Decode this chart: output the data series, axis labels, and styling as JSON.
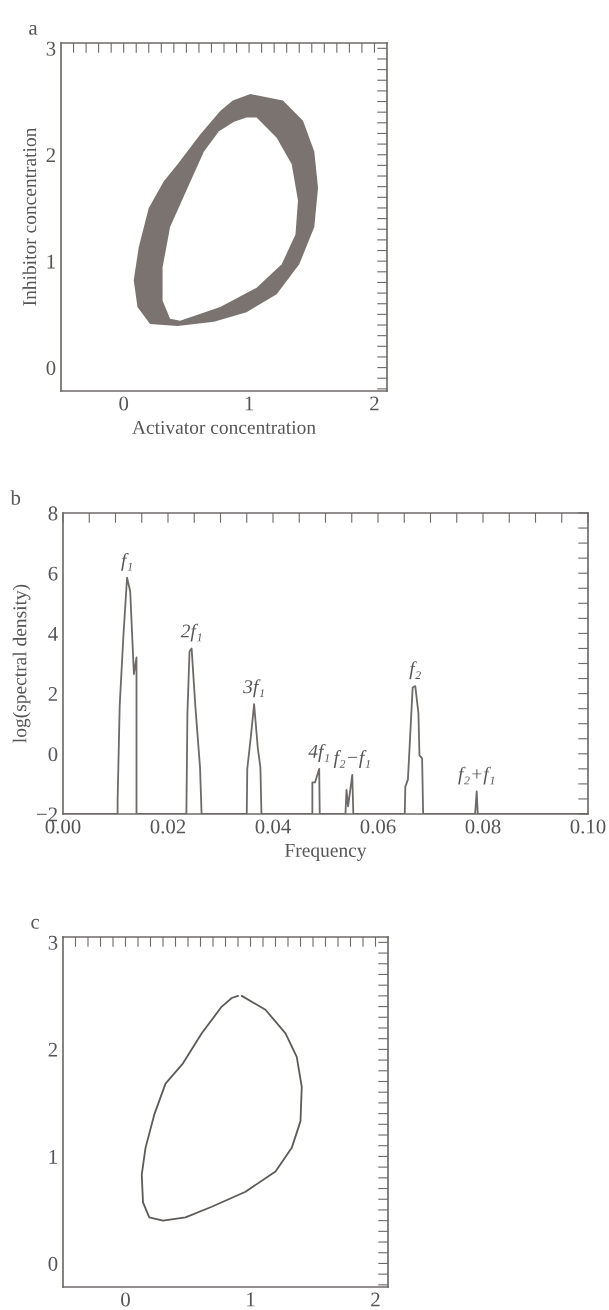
{
  "chart_data": [
    {
      "type": "area",
      "title": "a",
      "xlabel": "Activator concentration",
      "ylabel": "Inhibitor concentration",
      "xlim": [
        -0.5,
        2.1
      ],
      "ylim": [
        -0.22,
        3.05
      ],
      "xticks": [
        {
          "value": -0.4,
          "label": null
        },
        {
          "value": -0.3,
          "label": null
        },
        {
          "value": -0.2,
          "label": null
        },
        {
          "value": -0.1,
          "label": null
        },
        0,
        {
          "value": 0.1,
          "label": null
        },
        {
          "value": 0.2,
          "label": null
        },
        {
          "value": 0.3,
          "label": null
        },
        {
          "value": 0.4,
          "label": null
        },
        {
          "value": 0.5,
          "label": null
        },
        {
          "value": 0.6,
          "label": null
        },
        {
          "value": 0.7,
          "label": null
        },
        {
          "value": 0.8,
          "label": null
        },
        {
          "value": 0.9,
          "label": null
        },
        1,
        {
          "value": 1.1,
          "label": null
        },
        {
          "value": 1.2,
          "label": null
        },
        {
          "value": 1.3,
          "label": null
        },
        {
          "value": 1.4,
          "label": null
        },
        {
          "value": 1.5,
          "label": null
        },
        {
          "value": 1.6,
          "label": null
        },
        {
          "value": 1.7,
          "label": null
        },
        {
          "value": 1.8,
          "label": null
        },
        {
          "value": 1.9,
          "label": null
        },
        2
      ],
      "yticks": [
        {
          "value": -0.2,
          "label": null
        },
        {
          "value": -0.1,
          "label": null
        },
        0,
        {
          "value": 0.1,
          "label": null
        },
        {
          "value": 0.2,
          "label": null
        },
        {
          "value": 0.3,
          "label": null
        },
        {
          "value": 0.4,
          "label": null
        },
        {
          "value": 0.5,
          "label": null
        },
        {
          "value": 0.6,
          "label": null
        },
        {
          "value": 0.7,
          "label": null
        },
        {
          "value": 0.8,
          "label": null
        },
        {
          "value": 0.9,
          "label": null
        },
        1,
        {
          "value": 1.1,
          "label": null
        },
        {
          "value": 1.2,
          "label": null
        },
        {
          "value": 1.3,
          "label": null
        },
        {
          "value": 1.4,
          "label": null
        },
        {
          "value": 1.5,
          "label": null
        },
        {
          "value": 1.6,
          "label": null
        },
        {
          "value": 1.7,
          "label": null
        },
        {
          "value": 1.8,
          "label": null
        },
        {
          "value": 1.9,
          "label": null
        },
        2,
        {
          "value": 2.1,
          "label": null
        },
        {
          "value": 2.2,
          "label": null
        },
        {
          "value": 2.3,
          "label": null
        },
        {
          "value": 2.4,
          "label": null
        },
        {
          "value": 2.5,
          "label": null
        },
        {
          "value": 2.6,
          "label": null
        },
        {
          "value": 2.7,
          "label": null
        },
        {
          "value": 2.8,
          "label": null
        },
        {
          "value": 2.9,
          "label": null
        },
        3
      ],
      "series": [
        {
          "color": "#7a7370",
          "x": [
            1.01,
            1.27,
            1.43,
            1.52,
            1.55,
            1.52,
            1.4,
            1.22,
            0.98,
            0.72,
            0.43,
            0.21,
            0.11,
            0.08,
            0.12,
            0.2,
            0.32,
            0.43,
            0.61,
            0.77,
            0.87
          ],
          "values": [
            2.57,
            2.51,
            2.32,
            2.03,
            1.69,
            1.32,
            0.97,
            0.69,
            0.52,
            0.43,
            0.39,
            0.41,
            0.57,
            0.82,
            1.13,
            1.5,
            1.75,
            1.91,
            2.19,
            2.41,
            2.51
          ]
        },
        {
          "color": "#ffffff",
          "x": [
            1.06,
            1.22,
            1.34,
            1.39,
            1.37,
            1.26,
            1.06,
            0.77,
            0.45,
            0.37,
            0.31,
            0.31,
            0.37,
            0.51,
            0.64,
            0.76,
            0.88,
            0.98
          ],
          "values": [
            2.35,
            2.16,
            1.91,
            1.57,
            1.25,
            0.97,
            0.75,
            0.57,
            0.44,
            0.46,
            0.63,
            0.94,
            1.32,
            1.69,
            2.03,
            2.22,
            2.31,
            2.35
          ]
        }
      ]
    },
    {
      "type": "line",
      "title": "b",
      "xlabel": "Frequency",
      "ylabel": "log(spectral density)",
      "xlim": [
        0,
        0.1
      ],
      "ylim": [
        -2,
        8
      ],
      "xticks": [
        {
          "value": 0,
          "label": "0.00"
        },
        {
          "value": 0.005,
          "label": null
        },
        {
          "value": 0.01,
          "label": null
        },
        {
          "value": 0.015,
          "label": null
        },
        {
          "value": 0.02,
          "label": "0.02"
        },
        {
          "value": 0.025,
          "label": null
        },
        {
          "value": 0.03,
          "label": null
        },
        {
          "value": 0.035,
          "label": null
        },
        {
          "value": 0.04,
          "label": "0.04"
        },
        {
          "value": 0.045,
          "label": null
        },
        {
          "value": 0.05,
          "label": null
        },
        {
          "value": 0.055,
          "label": null
        },
        {
          "value": 0.06,
          "label": "0.06"
        },
        {
          "value": 0.065,
          "label": null
        },
        {
          "value": 0.07,
          "label": null
        },
        {
          "value": 0.075,
          "label": null
        },
        {
          "value": 0.08,
          "label": "0.08"
        },
        {
          "value": 0.085,
          "label": null
        },
        {
          "value": 0.09,
          "label": null
        },
        {
          "value": 0.095,
          "label": null
        },
        {
          "value": 0.1,
          "label": "0.10"
        }
      ],
      "yticks": [
        {
          "value": -2,
          "label": "−2"
        },
        {
          "value": -1.5,
          "label": null
        },
        {
          "value": -1,
          "label": null
        },
        {
          "value": -0.5,
          "label": null
        },
        0,
        {
          "value": 0.5,
          "label": null
        },
        {
          "value": 1,
          "label": null
        },
        {
          "value": 1.5,
          "label": null
        },
        2,
        {
          "value": 2.5,
          "label": null
        },
        {
          "value": 3,
          "label": null
        },
        {
          "value": 3.5,
          "label": null
        },
        4,
        {
          "value": 4.5,
          "label": null
        },
        {
          "value": 5,
          "label": null
        },
        {
          "value": 5.5,
          "label": null
        },
        6,
        {
          "value": 6.5,
          "label": null
        },
        {
          "value": 7,
          "label": null
        },
        {
          "value": 7.5,
          "label": null
        },
        8
      ],
      "series": [
        {
          "color": "#6e6a68",
          "x": [
            0,
            0.0104,
            0.0104,
            0.0108,
            0.0115,
            0.0122,
            0.0128,
            0.0135,
            0.014,
            0.014,
            0.0235,
            0.0237,
            0.0241,
            0.0245,
            0.0252,
            0.0261,
            0.0264,
            0.035,
            0.0351,
            0.0358,
            0.0364,
            0.0371,
            0.0376,
            0.0378,
            0.0475,
            0.0475,
            0.048,
            0.0488,
            0.0489,
            0.0538,
            0.054,
            0.0543,
            0.0551,
            0.0553,
            0.0651,
            0.0652,
            0.0657,
            0.0666,
            0.0671,
            0.0677,
            0.0679,
            0.0684,
            0.0686,
            0.0785,
            0.0788,
            0.079,
            0.1
          ],
          "values": [
            -2,
            -2,
            -1.55,
            1.6,
            3.9,
            5.85,
            5.4,
            2.65,
            3.2,
            -2,
            -2,
            1.35,
            3.4,
            3.5,
            1.6,
            -0.45,
            -2,
            -2,
            -0.5,
            0.6,
            1.65,
            0.2,
            -0.45,
            -2,
            -2,
            -0.95,
            -0.95,
            -0.5,
            -2,
            -2,
            -1.2,
            -1.75,
            -0.7,
            -2,
            -2,
            -1.1,
            -0.85,
            2.2,
            2.25,
            1.35,
            -0.05,
            -0.15,
            -2,
            -2,
            -1.25,
            -2,
            -2
          ]
        }
      ],
      "annotations": [
        {
          "text": "f₁",
          "x": 0.0122,
          "y": 5.85
        },
        {
          "text": "2f₁",
          "x": 0.0245,
          "y": 3.5
        },
        {
          "text": "3f₁",
          "x": 0.0364,
          "y": 1.65
        },
        {
          "text": "4f₁",
          "x": 0.0488,
          "y": -0.5
        },
        {
          "text": "f₂−f₁",
          "x": 0.0551,
          "y": -0.7
        },
        {
          "text": "f₂",
          "x": 0.0671,
          "y": 2.25
        },
        {
          "text": "f₂+f₁",
          "x": 0.0788,
          "y": -1.25
        }
      ]
    },
    {
      "type": "line",
      "title": "c",
      "xlim": [
        -0.5,
        2.1
      ],
      "ylim": [
        -0.22,
        3.05
      ],
      "xticks": [
        {
          "value": -0.4,
          "label": null
        },
        {
          "value": -0.3,
          "label": null
        },
        {
          "value": -0.2,
          "label": null
        },
        {
          "value": -0.1,
          "label": null
        },
        0,
        {
          "value": 0.1,
          "label": null
        },
        {
          "value": 0.2,
          "label": null
        },
        {
          "value": 0.3,
          "label": null
        },
        {
          "value": 0.4,
          "label": null
        },
        {
          "value": 0.5,
          "label": null
        },
        {
          "value": 0.6,
          "label": null
        },
        {
          "value": 0.7,
          "label": null
        },
        {
          "value": 0.8,
          "label": null
        },
        {
          "value": 0.9,
          "label": null
        },
        1,
        {
          "value": 1.1,
          "label": null
        },
        {
          "value": 1.2,
          "label": null
        },
        {
          "value": 1.3,
          "label": null
        },
        {
          "value": 1.4,
          "label": null
        },
        {
          "value": 1.5,
          "label": null
        },
        {
          "value": 1.6,
          "label": null
        },
        {
          "value": 1.7,
          "label": null
        },
        {
          "value": 1.8,
          "label": null
        },
        {
          "value": 1.9,
          "label": null
        },
        2
      ],
      "yticks": [
        {
          "value": -0.2,
          "label": null
        },
        {
          "value": -0.1,
          "label": null
        },
        0,
        {
          "value": 0.1,
          "label": null
        },
        {
          "value": 0.2,
          "label": null
        },
        {
          "value": 0.3,
          "label": null
        },
        {
          "value": 0.4,
          "label": null
        },
        {
          "value": 0.5,
          "label": null
        },
        {
          "value": 0.6,
          "label": null
        },
        {
          "value": 0.7,
          "label": null
        },
        {
          "value": 0.8,
          "label": null
        },
        {
          "value": 0.9,
          "label": null
        },
        1,
        {
          "value": 1.1,
          "label": null
        },
        {
          "value": 1.2,
          "label": null
        },
        {
          "value": 1.3,
          "label": null
        },
        {
          "value": 1.4,
          "label": null
        },
        {
          "value": 1.5,
          "label": null
        },
        {
          "value": 1.6,
          "label": null
        },
        {
          "value": 1.7,
          "label": null
        },
        {
          "value": 1.8,
          "label": null
        },
        {
          "value": 1.9,
          "label": null
        },
        2,
        {
          "value": 2.1,
          "label": null
        },
        {
          "value": 2.2,
          "label": null
        },
        {
          "value": 2.3,
          "label": null
        },
        {
          "value": 2.4,
          "label": null
        },
        {
          "value": 2.5,
          "label": null
        },
        {
          "value": 2.6,
          "label": null
        },
        {
          "value": 2.7,
          "label": null
        },
        {
          "value": 2.8,
          "label": null
        },
        {
          "value": 2.9,
          "label": null
        },
        3
      ],
      "series": [
        {
          "color": "#5e5a58",
          "x": [
            0.93,
            1.12,
            1.28,
            1.37,
            1.41,
            1.4,
            1.33,
            1.2,
            0.96,
            0.69,
            0.48,
            0.3,
            0.19,
            0.14,
            0.13,
            0.16,
            0.23,
            0.32,
            0.46,
            0.61,
            0.77,
            0.85,
            0.9
          ],
          "values": [
            2.5,
            2.37,
            2.15,
            1.93,
            1.65,
            1.33,
            1.08,
            0.86,
            0.67,
            0.53,
            0.43,
            0.4,
            0.43,
            0.57,
            0.83,
            1.08,
            1.39,
            1.68,
            1.87,
            2.15,
            2.4,
            2.48,
            2.5
          ]
        }
      ]
    }
  ]
}
